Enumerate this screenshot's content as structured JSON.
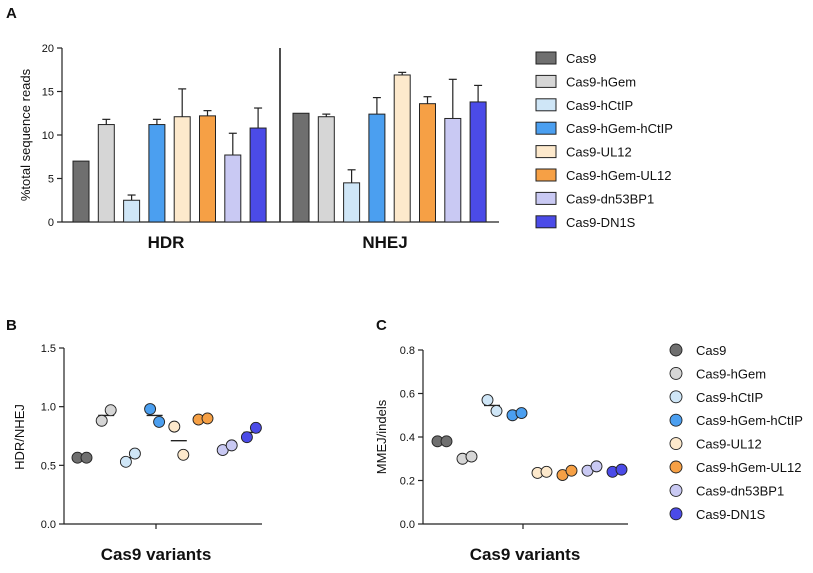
{
  "palette": {
    "Cas9": "#6f6f6f",
    "Cas9-hGem": "#d6d6d6",
    "Cas9-hCtIP": "#cfe6f7",
    "Cas9-hGem-hCtIP": "#4b9ff0",
    "Cas9-UL12": "#fde9cc",
    "Cas9-hGem-UL12": "#f6a045",
    "Cas9-dn53BP1": "#c9c9f3",
    "Cas9-DN1S": "#4b4be8"
  },
  "chart_data": [
    {
      "panel": "A",
      "type": "bar",
      "ylabel": "%total sequence reads",
      "ylim": [
        0,
        20
      ],
      "yticks": [
        0,
        5,
        10,
        15,
        20
      ],
      "categories": [
        "HDR",
        "NHEJ"
      ],
      "series": [
        {
          "name": "Cas9",
          "values": [
            7.0,
            12.5
          ],
          "errors": [
            0,
            0
          ]
        },
        {
          "name": "Cas9-hGem",
          "values": [
            11.2,
            12.1
          ],
          "errors": [
            0.6,
            0.3
          ]
        },
        {
          "name": "Cas9-hCtIP",
          "values": [
            2.5,
            4.5
          ],
          "errors": [
            0.6,
            1.5
          ]
        },
        {
          "name": "Cas9-hGem-hCtIP",
          "values": [
            11.2,
            12.4
          ],
          "errors": [
            0.6,
            1.9
          ]
        },
        {
          "name": "Cas9-UL12",
          "values": [
            12.1,
            16.9
          ],
          "errors": [
            3.2,
            0.3
          ]
        },
        {
          "name": "Cas9-hGem-UL12",
          "values": [
            12.2,
            13.6
          ],
          "errors": [
            0.6,
            0.8
          ]
        },
        {
          "name": "Cas9-dn53BP1",
          "values": [
            7.7,
            11.9
          ],
          "errors": [
            2.5,
            4.5
          ]
        },
        {
          "name": "Cas9-DN1S",
          "values": [
            10.8,
            13.8
          ],
          "errors": [
            2.3,
            1.9
          ]
        }
      ]
    },
    {
      "panel": "B",
      "type": "scatter",
      "ylabel": "HDR/NHEJ",
      "xlabel": "Cas9 variants",
      "ylim": [
        0,
        1.5
      ],
      "yticks": [
        "0.0",
        "0.5",
        "1.0",
        "1.5"
      ],
      "series": [
        {
          "name": "Cas9",
          "points": [
            0.565,
            0.565
          ],
          "mean": 0.565
        },
        {
          "name": "Cas9-hGem",
          "points": [
            0.88,
            0.97
          ],
          "mean": 0.925
        },
        {
          "name": "Cas9-hCtIP",
          "points": [
            0.53,
            0.6
          ],
          "mean": 0.565
        },
        {
          "name": "Cas9-hGem-hCtIP",
          "points": [
            0.98,
            0.87
          ],
          "mean": 0.925
        },
        {
          "name": "Cas9-UL12",
          "points": [
            0.83,
            0.59
          ],
          "mean": 0.71
        },
        {
          "name": "Cas9-hGem-UL12",
          "points": [
            0.89,
            0.9
          ],
          "mean": 0.895
        },
        {
          "name": "Cas9-dn53BP1",
          "points": [
            0.63,
            0.67
          ],
          "mean": 0.65
        },
        {
          "name": "Cas9-DN1S",
          "points": [
            0.74,
            0.82
          ],
          "mean": 0.78
        }
      ]
    },
    {
      "panel": "C",
      "type": "scatter",
      "ylabel": "MMEJ/indels",
      "xlabel": "Cas9 variants",
      "ylim": [
        0,
        0.8
      ],
      "yticks": [
        "0.0",
        "0.2",
        "0.4",
        "0.6",
        "0.8"
      ],
      "series": [
        {
          "name": "Cas9",
          "points": [
            0.38,
            0.38
          ],
          "mean": 0.38
        },
        {
          "name": "Cas9-hGem",
          "points": [
            0.3,
            0.31
          ],
          "mean": 0.305
        },
        {
          "name": "Cas9-hCtIP",
          "points": [
            0.57,
            0.52
          ],
          "mean": 0.545
        },
        {
          "name": "Cas9-hGem-hCtIP",
          "points": [
            0.5,
            0.51
          ],
          "mean": 0.505
        },
        {
          "name": "Cas9-UL12",
          "points": [
            0.235,
            0.24
          ],
          "mean": 0.237
        },
        {
          "name": "Cas9-hGem-UL12",
          "points": [
            0.225,
            0.245
          ],
          "mean": 0.235
        },
        {
          "name": "Cas9-dn53BP1",
          "points": [
            0.245,
            0.265
          ],
          "mean": 0.255
        },
        {
          "name": "Cas9-DN1S",
          "points": [
            0.24,
            0.25
          ],
          "mean": 0.245
        }
      ]
    }
  ]
}
